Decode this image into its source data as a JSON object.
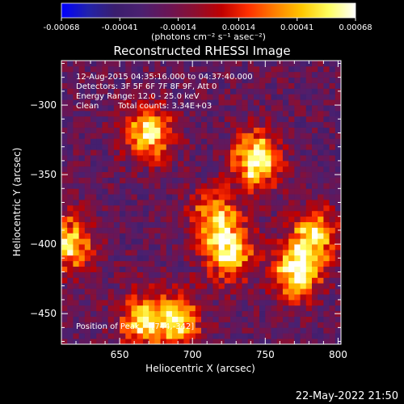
{
  "colorbar": {
    "ticks": [
      "-0.00068",
      "-0.00041",
      "-0.00014",
      "0.00014",
      "0.00041",
      "0.00068"
    ],
    "unit_label": "(photons cm⁻² s⁻¹ asec⁻²)",
    "range": [
      -0.00068,
      0.00068
    ],
    "palette": [
      "#0000ff",
      "#2222aa",
      "#3a1e6e",
      "#4b2070",
      "#6a1555",
      "#8c0f30",
      "#c00000",
      "#ff3000",
      "#ff8000",
      "#ffc800",
      "#ffff60",
      "#ffffff"
    ]
  },
  "annotations": {
    "line1": "12-Aug-2015 04:35:16.000 to 04:37:40.000",
    "line2": "Detectors: 3F 5F 6F 7F 8F 9F, Att 0",
    "line3": "Energy Range: 12.0 - 25.0 keV",
    "line4_a": "Clean",
    "line4_b": "Total counts: 3.34E+03",
    "peak": "Position of Peak = [744,-342]"
  },
  "footer": {
    "timestamp": "22-May-2022 21:50"
  },
  "chart_data": {
    "type": "heatmap",
    "title": "Reconstructed RHESSI Image",
    "xlabel": "Heliocentric X (arcsec)",
    "ylabel": "Heliocentric Y (arcsec)",
    "xlim": [
      610,
      802
    ],
    "ylim": [
      -472,
      -268
    ],
    "xticks": [
      650,
      700,
      750,
      800
    ],
    "yticks": [
      -300,
      -350,
      -400,
      -450
    ],
    "xtick_labels": [
      "650",
      "700",
      "750",
      "800"
    ],
    "ytick_labels": [
      "−300",
      "−350",
      "−400",
      "−450"
    ],
    "peak": [
      744,
      -342
    ],
    "sources": [
      {
        "x": 744,
        "y": -340,
        "peak": 0.00068
      },
      {
        "x": 670,
        "y": -320,
        "peak": 0.00055
      },
      {
        "x": 725,
        "y": -405,
        "peak": 0.00058
      },
      {
        "x": 770,
        "y": -420,
        "peak": 0.00062
      },
      {
        "x": 785,
        "y": -395,
        "peak": 0.0005
      },
      {
        "x": 615,
        "y": -400,
        "peak": 0.00052
      },
      {
        "x": 690,
        "y": -455,
        "peak": 0.0005
      },
      {
        "x": 665,
        "y": -455,
        "peak": 0.00045
      },
      {
        "x": 715,
        "y": -380,
        "peak": 0.0004
      }
    ]
  }
}
